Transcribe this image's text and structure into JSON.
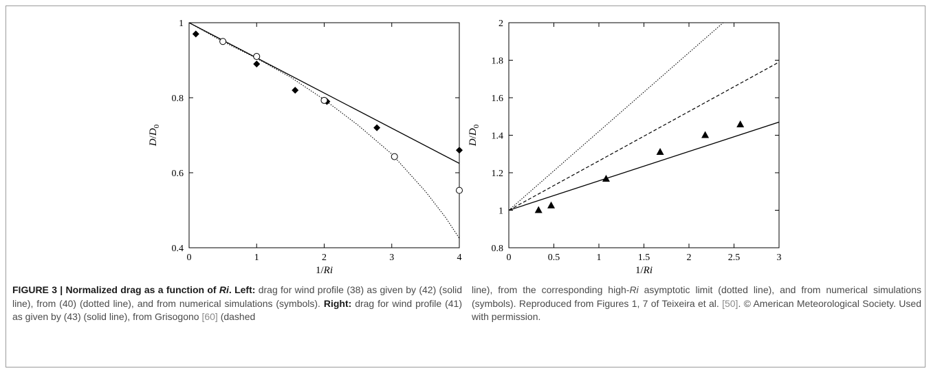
{
  "chart_data": [
    {
      "type": "scatter",
      "panel": "left",
      "xlabel": "1/Ri",
      "ylabel": "D/D0",
      "xlim": [
        0,
        4
      ],
      "ylim": [
        0.4,
        1
      ],
      "xticks": [
        "0",
        "1",
        "2",
        "3",
        "4"
      ],
      "yticks": [
        "0.4",
        "0.6",
        "0.8",
        "1"
      ],
      "grid": false,
      "series": [
        {
          "style": "solid line",
          "x": [
            0,
            4
          ],
          "y": [
            1,
            0.625
          ]
        },
        {
          "style": "dotted line",
          "x": [
            0,
            0.5,
            1,
            1.5,
            2,
            2.5,
            3,
            3.5,
            3.8,
            4
          ],
          "y": [
            1,
            0.95,
            0.905,
            0.855,
            0.795,
            0.727,
            0.65,
            0.55,
            0.48,
            0.425
          ]
        },
        {
          "style": "filled diamonds",
          "x": [
            0.1,
            1,
            1.57,
            2.04,
            2.78,
            4
          ],
          "y": [
            0.97,
            0.89,
            0.82,
            0.79,
            0.72,
            0.66
          ]
        },
        {
          "style": "open circles",
          "x": [
            0.5,
            1,
            2,
            3.04,
            4
          ],
          "y": [
            0.95,
            0.91,
            0.793,
            0.643,
            0.553
          ]
        }
      ]
    },
    {
      "type": "scatter",
      "panel": "right",
      "xlabel": "1/Ri",
      "ylabel": "D/D0",
      "xlim": [
        0,
        3
      ],
      "ylim": [
        0.8,
        2
      ],
      "xticks": [
        "0",
        "0.5",
        "1",
        "1.5",
        "2",
        "2.5",
        "3"
      ],
      "yticks": [
        "0.8",
        "1",
        "1.2",
        "1.4",
        "1.6",
        "1.8",
        "2"
      ],
      "grid": false,
      "series": [
        {
          "style": "solid line",
          "x": [
            0,
            3
          ],
          "y": [
            1,
            1.47
          ]
        },
        {
          "style": "dashed line",
          "x": [
            0,
            3
          ],
          "y": [
            1,
            1.79
          ]
        },
        {
          "style": "dotted line",
          "x": [
            0,
            2.38
          ],
          "y": [
            1,
            2
          ]
        },
        {
          "style": "filled triangles",
          "x": [
            0.33,
            0.47,
            1.08,
            1.68,
            2.18,
            2.57
          ],
          "y": [
            1.0,
            1.025,
            1.167,
            1.31,
            1.4,
            1.457
          ]
        }
      ]
    }
  ],
  "caption": {
    "fig_label": "FIGURE 3 | Normalized drag as a function of ",
    "fig_ri": "Ri",
    "left_label": "Left:",
    "left_text": " drag for wind profile (38) as given by (42) (solid line), from (40) (dotted line), and from numerical simulations (symbols). ",
    "right_label": "Right:",
    "right_text": " drag for wind profile (41) as given by (43) (solid line), from Grisogono ",
    "ref60": "[60]",
    "after60": " (dashed line), from the corresponding high-",
    "ri2": "Ri",
    "after_ri2": " asymptotic limit (dotted line), and from numerical simulations (symbols). Reproduced from Figures 1, 7 of Teixeira et al. ",
    "ref50": "[50]",
    "ending": ". © American Meteorological Society. Used with permission."
  }
}
